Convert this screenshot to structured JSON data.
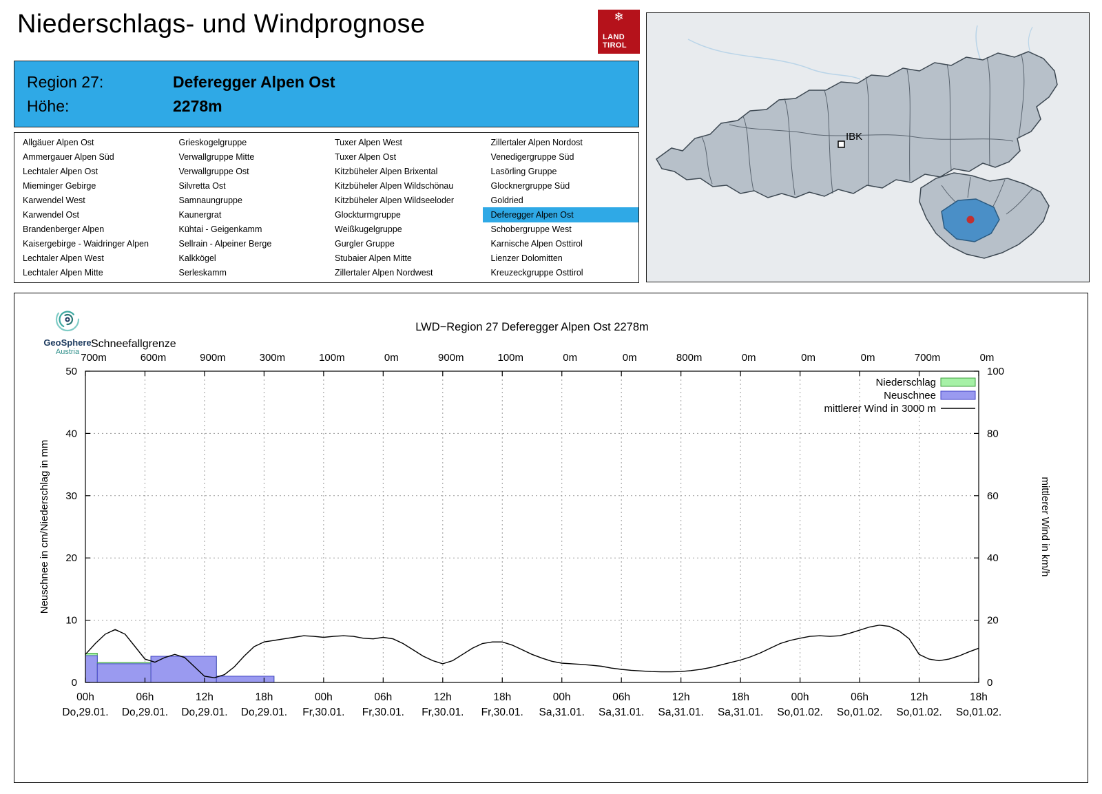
{
  "theme": {
    "accent": "#2fa9e6",
    "logo_red": "#b5121b"
  },
  "header": {
    "title": "Niederschlags- und Windprognose",
    "logo": {
      "snowflake": "❄",
      "line1": "LAND",
      "line2": "TIROL"
    },
    "region_label": "Region 27:",
    "region_name": "Deferegger Alpen Ost",
    "hoehe_label": "Höhe:",
    "hoehe_value": "2278m"
  },
  "region_list": {
    "selected": "Deferegger Alpen Ost",
    "columns": [
      [
        "Allgäuer Alpen Ost",
        "Ammergauer Alpen Süd",
        "Lechtaler Alpen Ost",
        "Mieminger Gebirge",
        "Karwendel West",
        "Karwendel Ost",
        "Brandenberger Alpen",
        "Kaisergebirge - Waidringer Alpen",
        "Lechtaler Alpen West",
        "Lechtaler Alpen Mitte"
      ],
      [
        "Grieskogelgruppe",
        "Verwallgruppe Mitte",
        "Verwallgruppe Ost",
        "Silvretta Ost",
        "Samnaungruppe",
        "Kaunergrat",
        "Kühtai - Geigenkamm",
        "Sellrain - Alpeiner Berge",
        "Kalkkögel",
        "Serleskamm"
      ],
      [
        "Tuxer Alpen West",
        "Tuxer Alpen Ost",
        "Kitzbüheler Alpen Brixental",
        "Kitzbüheler Alpen Wildschönau",
        "Kitzbüheler Alpen Wildseeloder",
        "Glockturmgruppe",
        "Weißkugelgruppe",
        "Gurgler Gruppe",
        "Stubaier Alpen Mitte",
        "Zillertaler Alpen Nordwest"
      ],
      [
        "Zillertaler Alpen Nordost",
        "Venedigergruppe Süd",
        "Lasörling Gruppe",
        "Glocknergruppe Süd",
        "Goldried",
        "Deferegger Alpen Ost",
        "Schobergruppe West",
        "Karnische Alpen Osttirol",
        "Lienzer Dolomitten",
        "Kreuzeckgruppe Osttirol"
      ]
    ]
  },
  "map": {
    "ibk_label": "IBK",
    "highlight_color": "#4a8fc7",
    "marker_color": "#c23030"
  },
  "branding": {
    "name": "GeoSphere",
    "sub": "Austria"
  },
  "chart_data": {
    "type": "bar",
    "title": "LWD−Region 27 Deferegger Alpen Ost 2278m",
    "snowline_label": "Schneefallgrenze",
    "snowline_values": [
      "700m",
      "600m",
      "900m",
      "300m",
      "100m",
      "0m",
      "900m",
      "100m",
      "0m",
      "0m",
      "800m",
      "0m",
      "0m",
      "0m",
      "700m",
      "0m"
    ],
    "ylabel_left": "Neuschnee in cm/Niederschlag in mm",
    "ylabel_right": "mittlerer Wind in km/h",
    "ylim_left": [
      0,
      50
    ],
    "ylim_right": [
      0,
      100
    ],
    "x_hours_range": [
      0,
      90
    ],
    "x_ticks": [
      {
        "time": "00h",
        "date": "Do,29.01."
      },
      {
        "time": "06h",
        "date": "Do,29.01."
      },
      {
        "time": "12h",
        "date": "Do,29.01."
      },
      {
        "time": "18h",
        "date": "Do,29.01."
      },
      {
        "time": "00h",
        "date": "Fr,30.01."
      },
      {
        "time": "06h",
        "date": "Fr,30.01."
      },
      {
        "time": "12h",
        "date": "Fr,30.01."
      },
      {
        "time": "18h",
        "date": "Fr,30.01."
      },
      {
        "time": "00h",
        "date": "Sa,31.01."
      },
      {
        "time": "06h",
        "date": "Sa,31.01."
      },
      {
        "time": "12h",
        "date": "Sa,31.01."
      },
      {
        "time": "18h",
        "date": "Sa,31.01."
      },
      {
        "time": "00h",
        "date": "So,01.02."
      },
      {
        "time": "06h",
        "date": "So,01.02."
      },
      {
        "time": "12h",
        "date": "So,01.02."
      },
      {
        "time": "18h",
        "date": "So,01.02."
      }
    ],
    "colors": {
      "niederschlag_fill": "#a6f1a6",
      "niederschlag_stroke": "#3f9e3f",
      "neuschnee_fill": "#9a9af0",
      "neuschnee_stroke": "#4646c8",
      "wind": "#000000"
    },
    "legend": [
      {
        "label": "Niederschlag",
        "type": "box",
        "fill": "#a6f1a6",
        "stroke": "#3f9e3f"
      },
      {
        "label": "Neuschnee",
        "type": "box",
        "fill": "#9a9af0",
        "stroke": "#4646c8"
      },
      {
        "label": "mittlerer Wind in 3000 m",
        "type": "line",
        "stroke": "#000000"
      }
    ],
    "bars": [
      {
        "start": 0.0,
        "end": 1.2,
        "niederschlag_mm": 4.7,
        "neuschnee_cm": 4.3
      },
      {
        "start": 1.2,
        "end": 6.6,
        "niederschlag_mm": 3.2,
        "neuschnee_cm": 3.0
      },
      {
        "start": 6.6,
        "end": 13.2,
        "niederschlag_mm": 4.2,
        "neuschnee_cm": 4.2
      },
      {
        "start": 13.2,
        "end": 19.0,
        "niederschlag_mm": 1.0,
        "neuschnee_cm": 1.0
      }
    ],
    "wind_series": {
      "name": "mittlerer Wind in 3000 m",
      "points": [
        [
          0,
          9
        ],
        [
          1,
          12.5
        ],
        [
          2,
          15.5
        ],
        [
          3,
          17
        ],
        [
          4,
          15.5
        ],
        [
          5,
          11.5
        ],
        [
          6,
          7.5
        ],
        [
          7,
          6.5
        ],
        [
          8,
          8
        ],
        [
          9,
          9
        ],
        [
          10,
          8
        ],
        [
          11,
          5
        ],
        [
          12,
          2
        ],
        [
          13,
          1.5
        ],
        [
          14,
          2.5
        ],
        [
          15,
          5
        ],
        [
          16,
          8.5
        ],
        [
          17,
          11.5
        ],
        [
          18,
          13
        ],
        [
          19,
          13.5
        ],
        [
          20,
          14
        ],
        [
          21,
          14.5
        ],
        [
          22,
          15
        ],
        [
          23,
          14.8
        ],
        [
          24,
          14.5
        ],
        [
          25,
          14.8
        ],
        [
          26,
          15
        ],
        [
          27,
          14.8
        ],
        [
          28,
          14.2
        ],
        [
          29,
          14
        ],
        [
          30,
          14.5
        ],
        [
          31,
          14
        ],
        [
          32,
          12.5
        ],
        [
          33,
          10.5
        ],
        [
          34,
          8.5
        ],
        [
          35,
          7
        ],
        [
          36,
          6
        ],
        [
          37,
          7
        ],
        [
          38,
          9
        ],
        [
          39,
          11
        ],
        [
          40,
          12.5
        ],
        [
          41,
          13
        ],
        [
          42,
          13
        ],
        [
          43,
          12
        ],
        [
          44,
          10.5
        ],
        [
          45,
          9
        ],
        [
          46,
          7.8
        ],
        [
          47,
          6.8
        ],
        [
          48,
          6.2
        ],
        [
          49,
          6
        ],
        [
          50,
          5.8
        ],
        [
          51,
          5.5
        ],
        [
          52,
          5.2
        ],
        [
          53,
          4.6
        ],
        [
          54,
          4.2
        ],
        [
          55,
          3.9
        ],
        [
          56,
          3.7
        ],
        [
          57,
          3.5
        ],
        [
          58,
          3.4
        ],
        [
          59,
          3.4
        ],
        [
          60,
          3.5
        ],
        [
          61,
          3.8
        ],
        [
          62,
          4.2
        ],
        [
          63,
          4.8
        ],
        [
          64,
          5.6
        ],
        [
          65,
          6.4
        ],
        [
          66,
          7.2
        ],
        [
          67,
          8.2
        ],
        [
          68,
          9.5
        ],
        [
          69,
          11
        ],
        [
          70,
          12.5
        ],
        [
          71,
          13.5
        ],
        [
          72,
          14.2
        ],
        [
          73,
          14.8
        ],
        [
          74,
          15
        ],
        [
          75,
          14.8
        ],
        [
          76,
          15
        ],
        [
          77,
          15.8
        ],
        [
          78,
          16.8
        ],
        [
          79,
          17.8
        ],
        [
          80,
          18.4
        ],
        [
          81,
          18
        ],
        [
          82,
          16.5
        ],
        [
          83,
          14
        ],
        [
          84,
          9
        ],
        [
          85,
          7.5
        ],
        [
          86,
          7
        ],
        [
          87,
          7.5
        ],
        [
          88,
          8.5
        ],
        [
          89,
          9.8
        ],
        [
          90,
          11
        ]
      ]
    }
  }
}
